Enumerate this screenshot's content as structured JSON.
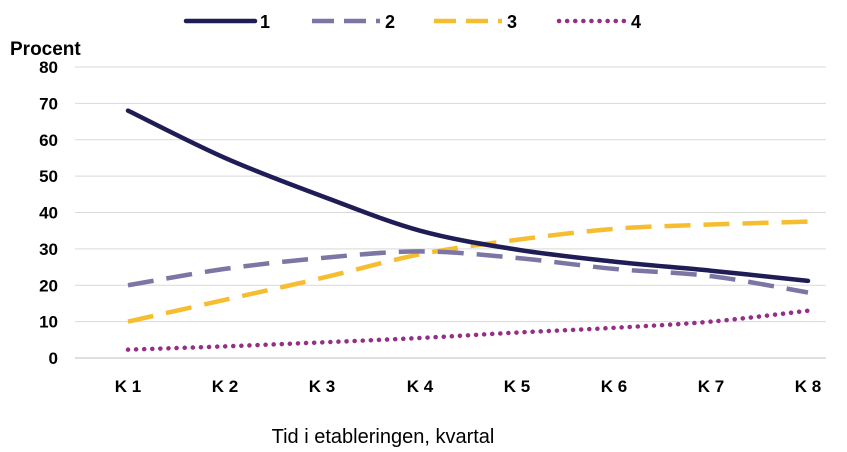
{
  "chart_data": {
    "type": "line",
    "categories": [
      "K 1",
      "K 2",
      "K 3",
      "K 4",
      "K 5",
      "K 6",
      "K 7",
      "K 8"
    ],
    "series": [
      {
        "name": "1",
        "values": [
          68,
          55,
          44.5,
          35,
          29.8,
          26.5,
          24,
          21.2
        ],
        "color": "#1f1d55",
        "dash": "solid"
      },
      {
        "name": "2",
        "values": [
          20,
          24.5,
          27.5,
          29.3,
          27.5,
          24.5,
          22.5,
          18
        ],
        "color": "#7b76a4",
        "dash": "dashed"
      },
      {
        "name": "3",
        "values": [
          10,
          16,
          22,
          28.5,
          32.5,
          35.5,
          36.7,
          37.5
        ],
        "color": "#f6bd30",
        "dash": "dashed"
      },
      {
        "name": "4",
        "values": [
          2.3,
          3.2,
          4.3,
          5.5,
          7,
          8.3,
          10,
          13
        ],
        "color": "#942f87",
        "dash": "dotted"
      }
    ],
    "title": "",
    "ylabel": "Procent",
    "xlabel": "Tid i etableringen, kvartal",
    "ylim": [
      0,
      80
    ],
    "yticks": [
      0,
      10,
      20,
      30,
      40,
      50,
      60,
      70,
      80
    ],
    "grid": true,
    "legend_position": "top"
  }
}
